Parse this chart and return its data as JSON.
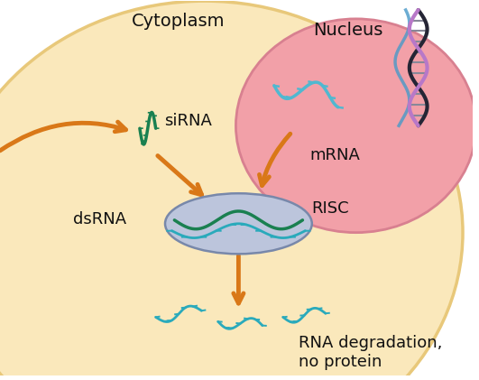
{
  "bg_outer": "#FFFFFF",
  "cell_color": "#FAE8BB",
  "cell_edge": "#E8C87A",
  "nucleus_color": "#F2A0A8",
  "nucleus_edge": "#D88090",
  "risc_ellipse_color": "#BCC5DC",
  "risc_ellipse_edge": "#7888AA",
  "arrow_color": "#D97818",
  "arrow_fill": "#E08828",
  "text_color": "#111111",
  "rna_green": "#1A8050",
  "rna_teal": "#2AAABB",
  "rna_blue": "#50B8D0",
  "dna_dark": "#252535",
  "dna_purple": "#B878C8",
  "dna_blue": "#4899C8",
  "labels": {
    "cytoplasm": "Cytoplasm",
    "nucleus": "Nucleus",
    "siRNA": "siRNA",
    "mRNA": "mRNA",
    "dsRNA": "dsRNA",
    "RISC": "RISC",
    "degradation": "RNA degradation,\nno protein"
  },
  "fontsize_header": 14,
  "fontsize_label": 13
}
